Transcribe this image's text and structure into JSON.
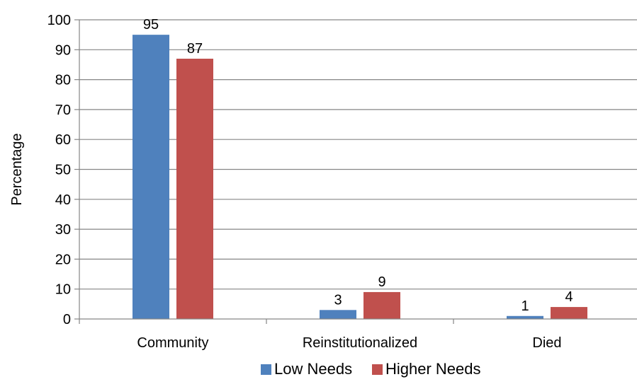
{
  "chart_data": {
    "type": "bar",
    "categories": [
      "Community",
      "Reinstitutionalized",
      "Died"
    ],
    "series": [
      {
        "name": "Low Needs",
        "values": [
          95,
          3,
          1
        ],
        "labels": [
          "95",
          "3",
          "1"
        ],
        "color": "#4f81bd"
      },
      {
        "name": "Higher Needs",
        "values": [
          87,
          9,
          4
        ],
        "labels": [
          "87",
          "9",
          "4"
        ],
        "color": "#c0504d"
      }
    ],
    "title": "",
    "xlabel": "",
    "ylabel": "Percentage",
    "ylim": [
      0,
      100
    ],
    "yticks": [
      0,
      10,
      20,
      30,
      40,
      50,
      60,
      70,
      80,
      90,
      100
    ],
    "ytick_labels": [
      "0",
      "10",
      "20",
      "30",
      "40",
      "50",
      "60",
      "70",
      "80",
      "90",
      "100"
    ],
    "grid": true,
    "legend_position": "bottom"
  }
}
